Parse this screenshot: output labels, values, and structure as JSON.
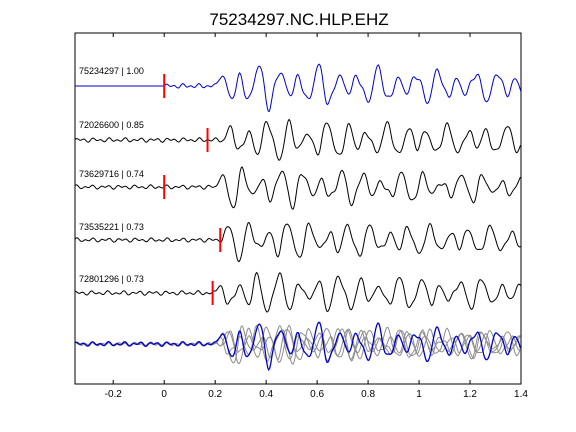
{
  "chart_data": {
    "type": "line",
    "title": "75234297.NC.HLP.EHZ",
    "xlabel": "",
    "ylabel": "",
    "xlim": [
      -0.35,
      1.4
    ],
    "xticks": [
      -0.2,
      0,
      0.2,
      0.4,
      0.6,
      0.8,
      1,
      1.2,
      1.4
    ],
    "xtick_labels": [
      "-0.2",
      "0",
      "0.2",
      "0.4",
      "0.6",
      "0.8",
      "1",
      "1.2",
      "1.4"
    ],
    "grid": false,
    "legend": "none",
    "colors": {
      "reference": "#0000cc",
      "trace": "#000000",
      "overlay": "#8c8c8c",
      "pick": "#ff0000",
      "axes": "#000000"
    },
    "series": [
      {
        "label": "75234297 | 1.00",
        "pick_time": 0.0,
        "onset": 0.2,
        "start": 0.0,
        "amplitude": 1.0,
        "seed": 1,
        "color": "reference"
      },
      {
        "label": "72026600 | 0.85",
        "pick_time": 0.17,
        "onset": 0.23,
        "start": -0.35,
        "amplitude": 0.95,
        "seed": 2,
        "color": "trace"
      },
      {
        "label": "73629716 | 0.74",
        "pick_time": 0.0,
        "onset": 0.2,
        "start": -0.35,
        "amplitude": 0.9,
        "seed": 3,
        "color": "trace"
      },
      {
        "label": "73535221 | 0.73",
        "pick_time": 0.22,
        "onset": 0.22,
        "start": -0.35,
        "amplitude": 0.9,
        "seed": 4,
        "color": "trace"
      },
      {
        "label": "72801296 | 0.73",
        "pick_time": 0.19,
        "onset": 0.2,
        "start": -0.35,
        "amplitude": 0.95,
        "seed": 5,
        "color": "trace"
      }
    ],
    "stack": {
      "reference_color": "reference",
      "overlay_color": "overlay"
    }
  }
}
